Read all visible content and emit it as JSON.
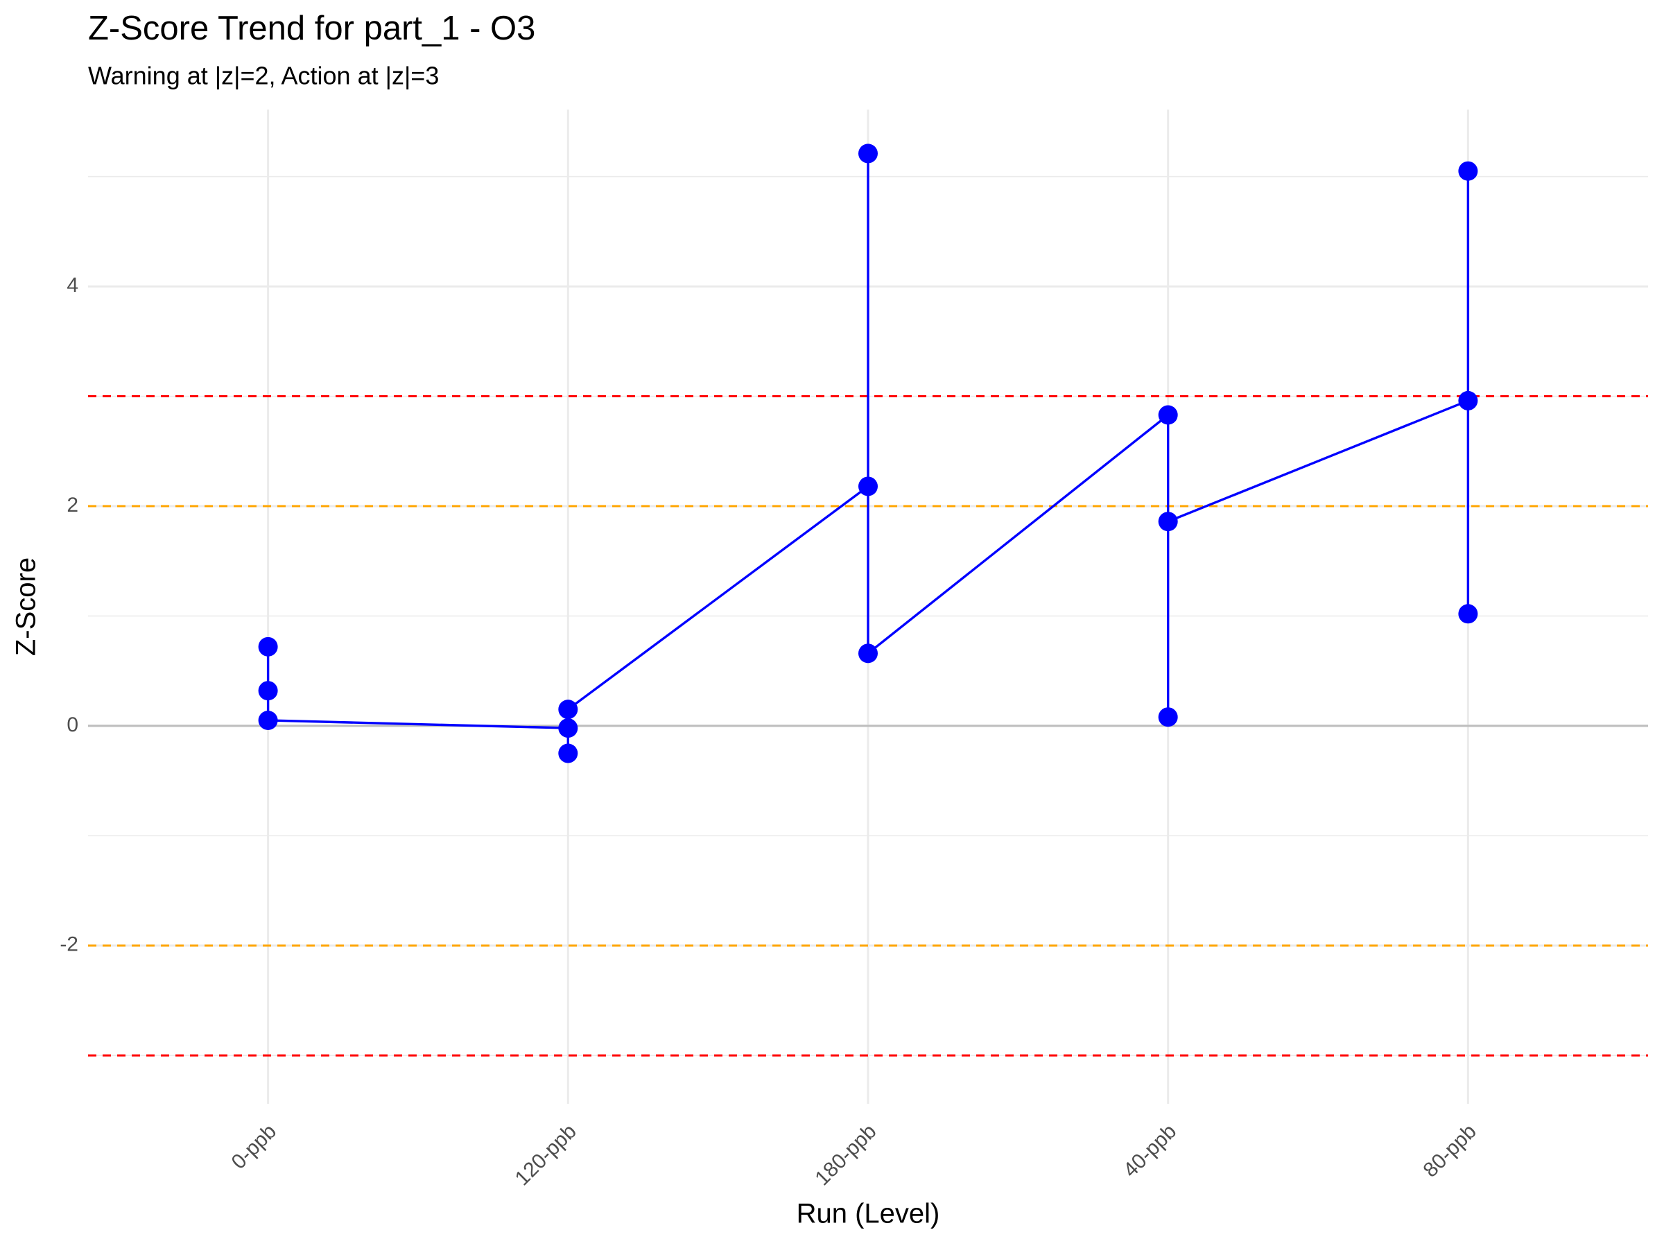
{
  "chart_data": {
    "type": "line",
    "title": "Z-Score Trend for part_1 - O3",
    "subtitle": "Warning at |z|=2, Action at |z|=3",
    "x_label": "Run (Level)",
    "y_label": "Z-Score",
    "categories": [
      "0-ppb",
      "120-ppb",
      "180-ppb",
      "40-ppb",
      "80-ppb"
    ],
    "series": [
      {
        "color": "#0000ff",
        "values": [
          [
            0.72,
            0.32,
            0.05
          ],
          [
            -0.02,
            -0.25,
            0.15
          ],
          [
            2.18,
            5.21,
            0.66
          ],
          [
            2.83,
            0.08,
            1.86
          ],
          [
            2.96,
            5.05,
            1.02
          ]
        ]
      }
    ],
    "ylim": [
      -3.44,
      5.61
    ],
    "yticks": [
      -2,
      0,
      2,
      4
    ],
    "grid": true,
    "reference_lines": [
      {
        "value": 3,
        "color": "#ff0000"
      },
      {
        "value": -3,
        "color": "#ff0000"
      },
      {
        "value": 2,
        "color": "#ffa500"
      },
      {
        "value": -2,
        "color": "#ffa500"
      }
    ],
    "zero_line": {
      "value": 0,
      "color": "#bebebe"
    }
  }
}
